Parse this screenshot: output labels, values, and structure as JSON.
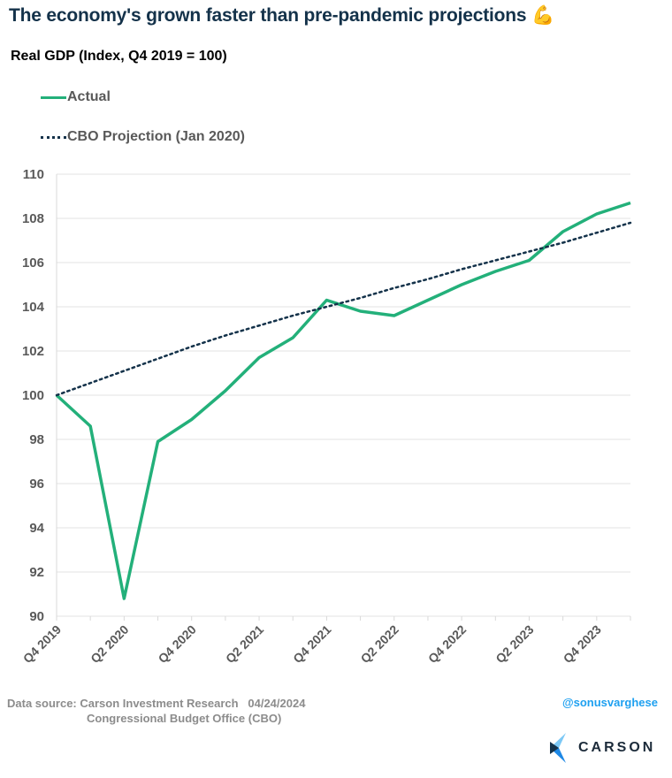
{
  "title": "The economy's grown faster than pre-pandemic projections",
  "title_emoji": "💪",
  "chart_data": {
    "type": "line",
    "title": "The economy's grown faster than pre-pandemic projections",
    "ylabel": "Real GDP (Index, Q4 2019 = 100)",
    "ylim": [
      90,
      110
    ],
    "yticks": [
      90,
      92,
      94,
      96,
      98,
      100,
      102,
      104,
      106,
      108,
      110
    ],
    "grid": true,
    "legend_placement": "top-left",
    "x": [
      "Q4 2019",
      "Q1 2020",
      "Q2 2020",
      "Q3 2020",
      "Q4 2020",
      "Q1 2021",
      "Q2 2021",
      "Q3 2021",
      "Q4 2021",
      "Q1 2022",
      "Q2 2022",
      "Q3 2022",
      "Q4 2022",
      "Q1 2023",
      "Q2 2023",
      "Q3 2023",
      "Q4 2023",
      "Q1 2024"
    ],
    "xtick_labels": [
      "Q4 2019",
      "Q2 2020",
      "Q4 2020",
      "Q2 2021",
      "Q4 2021",
      "Q2 2022",
      "Q4 2022",
      "Q2 2023",
      "Q4 2023"
    ],
    "series": [
      {
        "name": "Actual",
        "color": "#23b07a",
        "style": "solid",
        "values": [
          100,
          98.6,
          90.8,
          97.9,
          98.9,
          100.2,
          101.7,
          102.6,
          104.3,
          103.8,
          103.6,
          104.3,
          105.0,
          105.6,
          106.1,
          107.4,
          108.2,
          108.7
        ]
      },
      {
        "name": "CBO Projection (Jan 2020)",
        "color": "#14324a",
        "style": "dotted",
        "values": [
          100,
          100.55,
          101.1,
          101.65,
          102.2,
          102.7,
          103.15,
          103.6,
          104.0,
          104.4,
          104.85,
          105.25,
          105.7,
          106.1,
          106.5,
          106.9,
          107.35,
          107.8
        ]
      }
    ]
  },
  "footer": {
    "source_line1": "Data source: Carson Investment Research   04/24/2024",
    "source_line2": "Congressional Budget Office (CBO)",
    "handle": "@sonusvarghese",
    "logo_text": "CARSON"
  }
}
